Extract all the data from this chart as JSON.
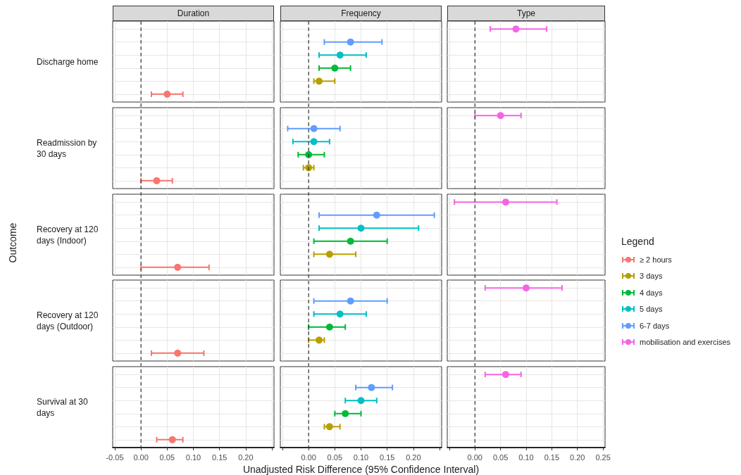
{
  "chart_data": [
    {
      "type": "scatter",
      "orientation": "horizontal",
      "title": "Duration",
      "ylabel": "Outcome",
      "categories": [
        "Discharge home",
        "Readmission by 30 days",
        "Recovery at 120 days (Indoor)",
        "Recovery at 120 days (Outdoor)",
        "Survival at 30 days"
      ],
      "xlim": [
        -0.054,
        0.254
      ],
      "xticks": [
        -0.05,
        {
          "value": 0,
          "label": "0.00"
        },
        0.05,
        {
          "value": 0.1,
          "label": "0.10"
        },
        0.15,
        {
          "value": 0.2,
          "label": "0.20"
        },
        {
          "value": 0.25,
          "label": null
        }
      ],
      "grid": true,
      "marker": "circle",
      "ref_lines": [
        {
          "axis": "x",
          "value": 0,
          "line_style": "dashed",
          "color": "#333333"
        }
      ],
      "series": [
        {
          "name": "≥ 2 hours",
          "color": "#f8766d",
          "values": [
            0.05,
            0.03,
            0.07,
            0.07,
            0.06
          ],
          "errors": [
            [
              0.02,
              0.08
            ],
            [
              0.0,
              0.06
            ],
            [
              0.0,
              0.13
            ],
            [
              0.02,
              0.12
            ],
            [
              0.03,
              0.08
            ]
          ]
        }
      ]
    },
    {
      "type": "scatter",
      "orientation": "horizontal",
      "title": "Frequency",
      "xlabel": "Unadjusted Risk Difference (95% Confidence Interval)",
      "categories": [
        "Discharge home",
        "Readmission by 30 days",
        "Recovery at 120 days (Indoor)",
        "Recovery at 120 days (Outdoor)",
        "Survival at 30 days"
      ],
      "tick_labels": "x",
      "xlim": [
        -0.054,
        0.254
      ],
      "xticks": [
        {
          "value": -0.05,
          "label": null
        },
        {
          "value": 0,
          "label": "0.00"
        },
        0.05,
        {
          "value": 0.1,
          "label": "0.10"
        },
        0.15,
        {
          "value": 0.2,
          "label": "0.20"
        },
        {
          "value": 0.25,
          "label": null
        }
      ],
      "grid": true,
      "marker": "circle",
      "ref_lines": [
        {
          "axis": "x",
          "value": 0,
          "line_style": "dashed",
          "color": "#333333"
        }
      ],
      "series": [
        {
          "name": "3 days",
          "color": "#b79f00",
          "values": [
            0.02,
            0.0,
            0.04,
            0.02,
            0.04
          ],
          "errors": [
            [
              0.01,
              0.05
            ],
            [
              -0.01,
              0.01
            ],
            [
              0.01,
              0.09
            ],
            [
              0.0,
              0.03
            ],
            [
              0.03,
              0.06
            ]
          ]
        },
        {
          "name": "4 days",
          "color": "#00ba38",
          "values": [
            0.05,
            0.0,
            0.08,
            0.04,
            0.07
          ],
          "errors": [
            [
              0.02,
              0.08
            ],
            [
              -0.02,
              0.03
            ],
            [
              0.01,
              0.15
            ],
            [
              0.0,
              0.07
            ],
            [
              0.05,
              0.1
            ]
          ]
        },
        {
          "name": "5 days",
          "color": "#00bfc4",
          "values": [
            0.06,
            0.01,
            0.1,
            0.06,
            0.1
          ],
          "errors": [
            [
              0.02,
              0.11
            ],
            [
              -0.03,
              0.04
            ],
            [
              0.02,
              0.21
            ],
            [
              0.01,
              0.11
            ],
            [
              0.07,
              0.13
            ]
          ]
        },
        {
          "name": "6-7 days",
          "color": "#619cff",
          "values": [
            0.08,
            0.01,
            0.13,
            0.08,
            0.12
          ],
          "errors": [
            [
              0.03,
              0.14
            ],
            [
              -0.04,
              0.06
            ],
            [
              0.02,
              0.24
            ],
            [
              0.01,
              0.15
            ],
            [
              0.09,
              0.16
            ]
          ]
        }
      ]
    },
    {
      "type": "scatter",
      "orientation": "horizontal",
      "title": "Type",
      "legend": "right",
      "legend_title": "Legend",
      "categories": [
        "Discharge home",
        "Readmission by 30 days",
        "Recovery at 120 days (Indoor)",
        "Recovery at 120 days (Outdoor)",
        "Survival at 30 days"
      ],
      "tick_labels": "x",
      "xlim": [
        -0.054,
        0.254
      ],
      "xticks": [
        {
          "value": -0.05,
          "label": null
        },
        {
          "value": 0,
          "label": "0.00"
        },
        0.05,
        {
          "value": 0.1,
          "label": "0.10"
        },
        0.15,
        {
          "value": 0.2,
          "label": "0.20"
        },
        0.25
      ],
      "grid": true,
      "marker": "circle",
      "ref_lines": [
        {
          "axis": "x",
          "value": 0,
          "line_style": "dashed",
          "color": "#333333"
        }
      ],
      "series": [
        {
          "name": "mobilisation and exercises",
          "color": "#f564e3",
          "values": [
            0.08,
            0.05,
            0.06,
            0.1,
            0.06
          ],
          "errors": [
            [
              0.03,
              0.14
            ],
            [
              0.0,
              0.09
            ],
            [
              -0.04,
              0.16
            ],
            [
              0.02,
              0.17
            ],
            [
              0.02,
              0.09
            ]
          ]
        }
      ]
    }
  ]
}
